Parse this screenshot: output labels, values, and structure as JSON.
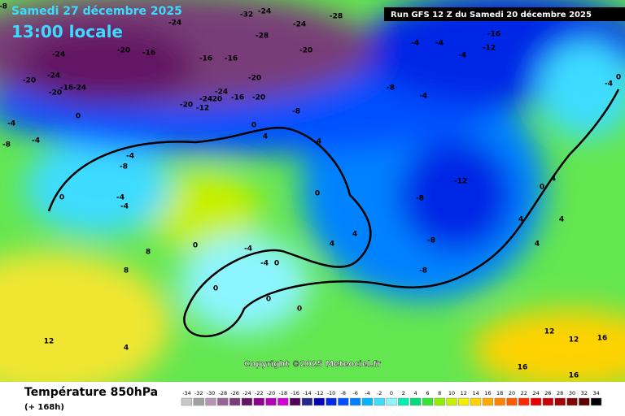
{
  "header": {
    "title": "Samedi 27 décembre 2025",
    "time": "13:00 locale",
    "run": "Run GFS 12 Z du Samedi 20 décembre 2025"
  },
  "copyright": "Copyright ©2025 Meteociel.fr",
  "footer": {
    "label": "Température 850hPa",
    "lead": "(+ 168h)"
  },
  "legend": {
    "values": [
      -34,
      -32,
      -30,
      -28,
      -26,
      -24,
      -22,
      -20,
      -18,
      -16,
      -14,
      -12,
      -10,
      -8,
      -6,
      -4,
      -2,
      0,
      2,
      4,
      6,
      8,
      10,
      12,
      14,
      16,
      18,
      20,
      22,
      24,
      26,
      28,
      30,
      32,
      34
    ],
    "colors": [
      "#c8c8c8",
      "#a0a0a0",
      "#b496b4",
      "#966496",
      "#783c78",
      "#641464",
      "#8c008c",
      "#b400b4",
      "#d200d2",
      "#50005a",
      "#28288c",
      "#0000b4",
      "#0028e6",
      "#0050ff",
      "#0082ff",
      "#00b4ff",
      "#3cdcff",
      "#8cf5ff",
      "#00f0b4",
      "#00dc78",
      "#32e632",
      "#8cf000",
      "#c8f000",
      "#f0f000",
      "#ffd200",
      "#ffaa00",
      "#ff8200",
      "#ff5a00",
      "#ff2800",
      "#e60000",
      "#c80000",
      "#a00000",
      "#820000",
      "#5a0000",
      "#000000"
    ]
  },
  "map_labels": [
    -8,
    -24,
    -28,
    -24,
    -32,
    -28,
    -24,
    -20,
    -24,
    -20,
    -16,
    -16,
    -16,
    -20,
    -24,
    -16,
    -24,
    -20,
    -24,
    -20,
    -24,
    -16,
    -20,
    -20,
    -20,
    -12,
    -8,
    -16,
    -12,
    -4,
    -4,
    -4,
    -8,
    -4,
    -12,
    -8,
    -8,
    -8,
    -4,
    -4,
    -8,
    -4,
    -8,
    0,
    0,
    4,
    -4,
    -4,
    -4,
    0,
    0,
    4,
    4,
    4,
    4,
    -4,
    -4,
    0,
    0,
    0,
    0,
    0,
    4,
    4,
    8,
    8,
    12,
    4,
    12,
    12,
    16,
    16,
    16,
    -4,
    0,
    0
  ]
}
